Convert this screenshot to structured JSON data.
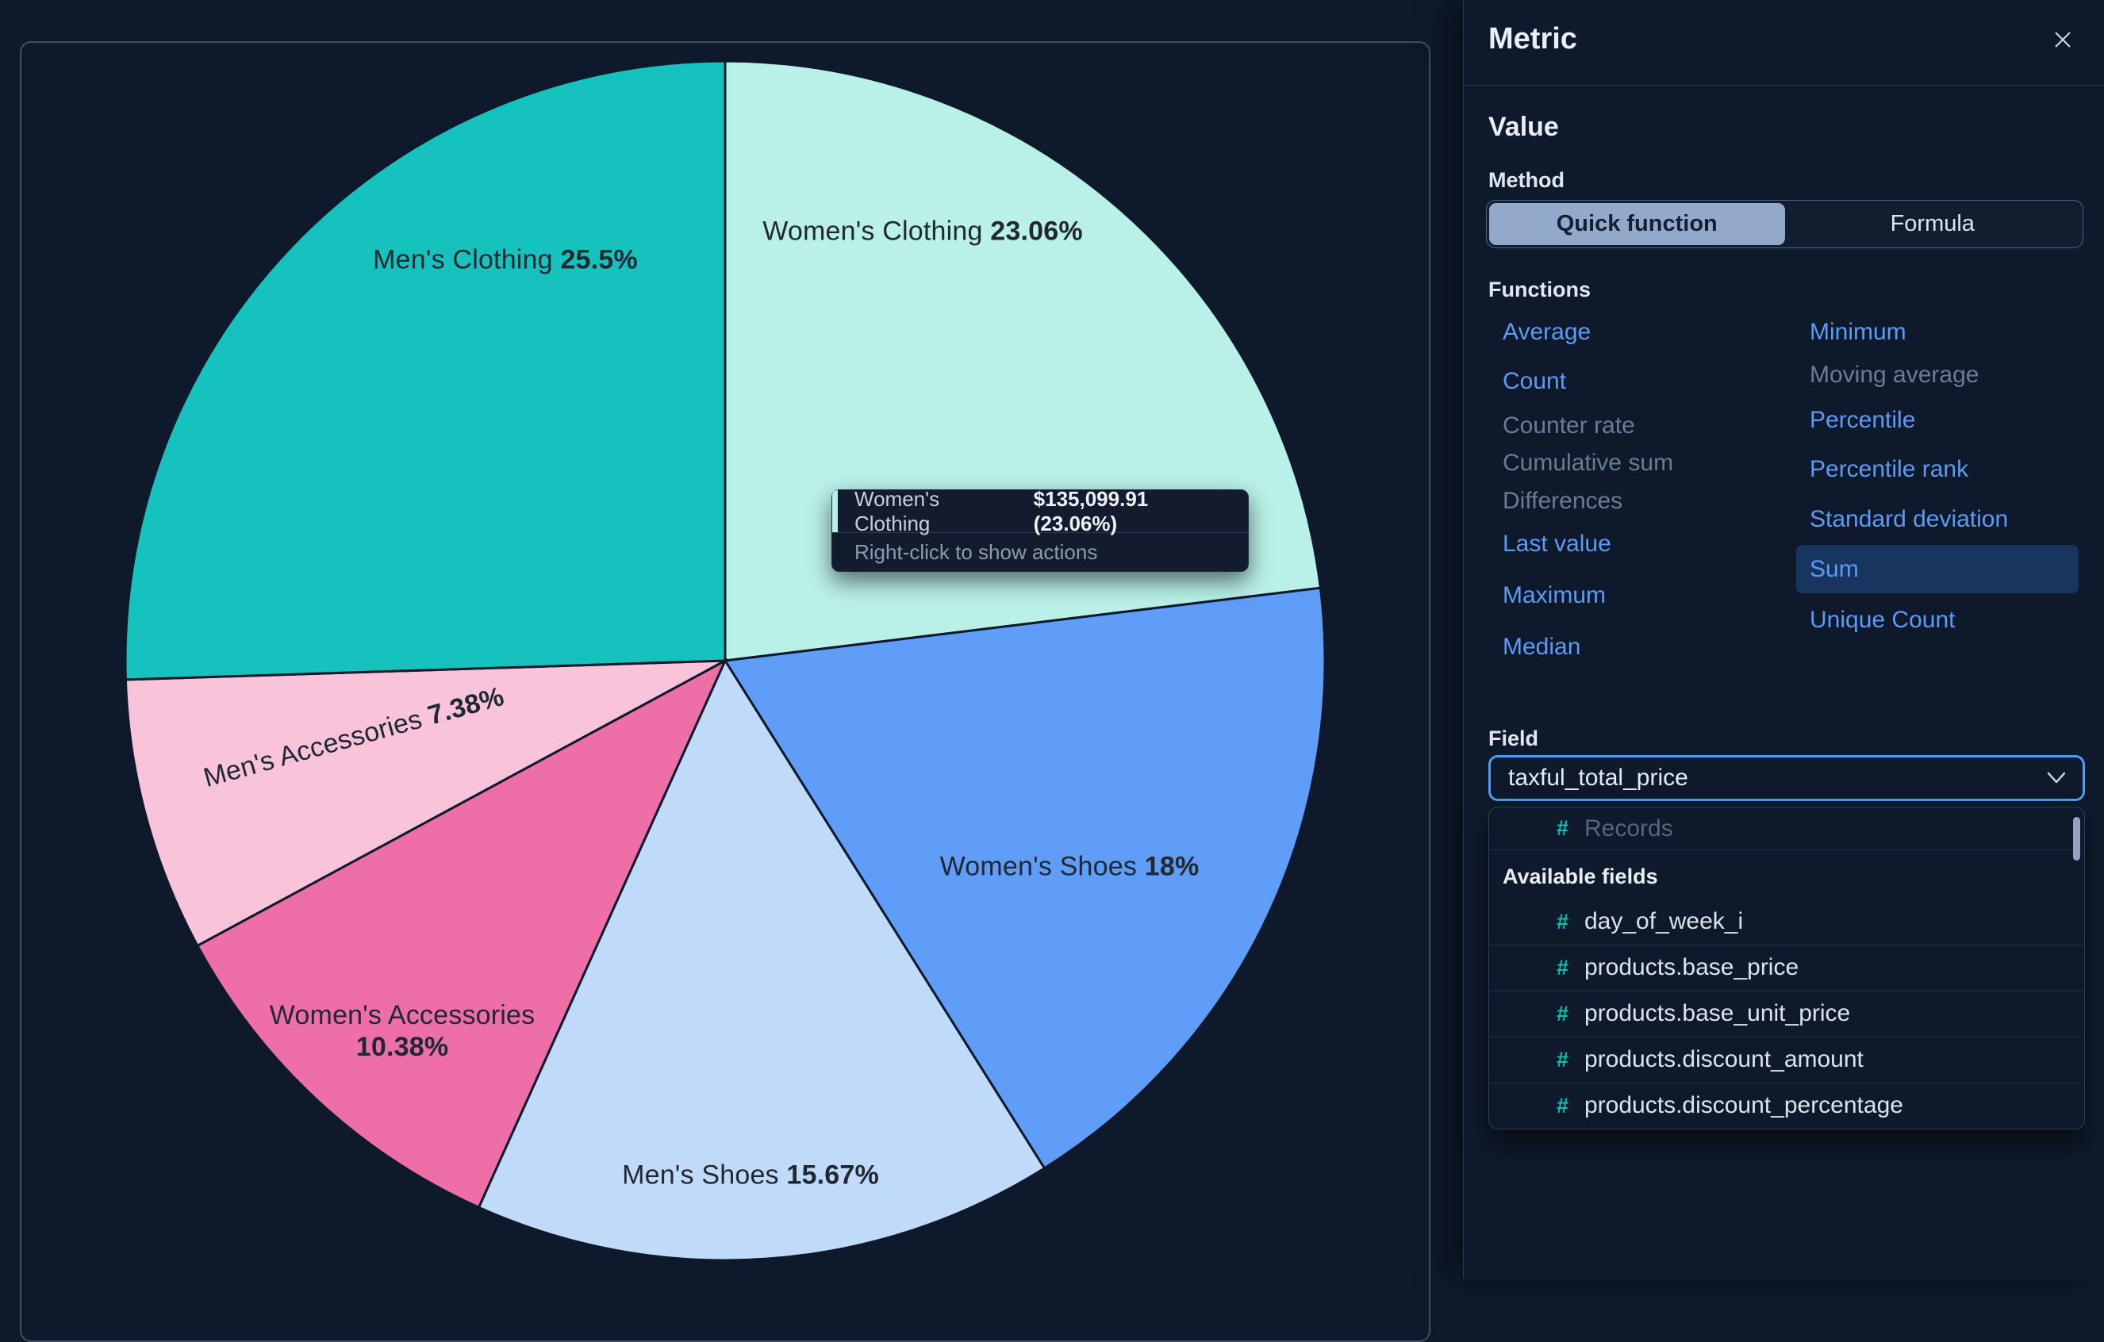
{
  "chart_data": {
    "type": "pie",
    "title": "",
    "legend": "none",
    "slices": [
      {
        "name": "Women's Clothing",
        "pct": 23.06,
        "pct_label": "23.06%",
        "color": "#b9f0e7",
        "value_label": "$135,099.91 (23.06%)"
      },
      {
        "name": "Women's Shoes",
        "pct": 18,
        "pct_label": "18%",
        "color": "#5f9df8"
      },
      {
        "name": "Men's Shoes",
        "pct": 15.67,
        "pct_label": "15.67%",
        "color": "#c0dbfa"
      },
      {
        "name": "Women's Accessories",
        "pct": 10.38,
        "pct_label": "10.38%",
        "color": "#ee6fa8"
      },
      {
        "name": "Men's Accessories",
        "pct": 7.38,
        "pct_label": "7.38%",
        "color": "#f9c3da"
      },
      {
        "name": "Men's Clothing",
        "pct": 25.5,
        "pct_label": "25.5%",
        "color": "#16c2bd"
      }
    ]
  },
  "tooltip": {
    "label": "Women's Clothing",
    "value": "$135,099.91 (23.06%)",
    "hint": "Right-click to show actions",
    "accent_color": "#b9f0e7"
  },
  "flyout": {
    "title": "Metric",
    "value_heading": "Value",
    "method_label": "Method",
    "method_options": [
      {
        "label": "Quick function",
        "selected": true
      },
      {
        "label": "Formula",
        "selected": false
      }
    ],
    "functions_label": "Functions",
    "functions_left": [
      {
        "label": "Average",
        "state": "enabled"
      },
      {
        "label": "Count",
        "state": "enabled"
      },
      {
        "label": "Counter rate",
        "state": "disabled"
      },
      {
        "label": "Cumulative sum",
        "state": "disabled"
      },
      {
        "label": "Differences",
        "state": "disabled"
      },
      {
        "label": "Last value",
        "state": "enabled"
      },
      {
        "label": "Maximum",
        "state": "enabled"
      },
      {
        "label": "Median",
        "state": "enabled"
      }
    ],
    "functions_right": [
      {
        "label": "Minimum",
        "state": "enabled"
      },
      {
        "label": "Moving average",
        "state": "disabled"
      },
      {
        "label": "Percentile",
        "state": "enabled"
      },
      {
        "label": "Percentile rank",
        "state": "enabled"
      },
      {
        "label": "Standard deviation",
        "state": "enabled"
      },
      {
        "label": "Sum",
        "state": "selected"
      },
      {
        "label": "Unique Count",
        "state": "enabled"
      }
    ],
    "field_label": "Field",
    "field_value": "taxful_total_price",
    "dropdown": {
      "top_option": {
        "label": "Records",
        "disabled": true
      },
      "group_label": "Available fields",
      "options": [
        {
          "label": "day_of_week_i"
        },
        {
          "label": "products.base_price"
        },
        {
          "label": "products.base_unit_price"
        },
        {
          "label": "products.discount_amount"
        },
        {
          "label": "products.discount_percentage"
        }
      ]
    }
  },
  "colors": {
    "background": "#0e1a2b",
    "link_blue": "#5c9bf5",
    "disabled_text": "#6a7b93",
    "selected_row_bg": "#17355f",
    "focus_border": "#4f9cf4",
    "hash_teal": "#00c2b5",
    "selected_segment_bg": "#93a9ca"
  }
}
